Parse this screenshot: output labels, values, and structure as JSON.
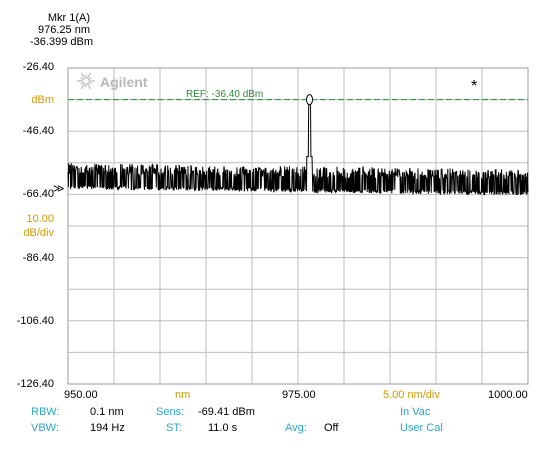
{
  "marker": {
    "name": "Mkr 1(A)",
    "wavelength": "976.25 nm",
    "power": "-36.399 dBm"
  },
  "logo": {
    "brand": "Agilent"
  },
  "ref_label": "REF: -36.40 dBm",
  "star_glyph": "*",
  "arrow_glyph": "≫",
  "ylabels": [
    "-26.40",
    "dBm",
    "-46.40",
    "-66.40",
    "10.00",
    "dB/div",
    "-86.40",
    "-106.40",
    "-126.40"
  ],
  "xlabels": [
    "950.00",
    "nm",
    "975.00",
    "5.00 nm/div",
    "1000.00"
  ],
  "status": {
    "rbw_label": "RBW:",
    "rbw_value": "0.1 nm",
    "vbw_label": "VBW:",
    "vbw_value": "194  Hz",
    "sens_label": "Sens:",
    "sens_value": "-69.41 dBm",
    "st_label": "ST:",
    "st_value": "11.0 s",
    "avg_label": "Avg:",
    "avg_value": "Off",
    "mode1": "In Vac",
    "mode2": "User Cal"
  },
  "colors": {
    "ref_line": "#2e8b3a",
    "gold": "#d19a00",
    "cyan": "#2aa6c8",
    "grid": "#bdbdbd",
    "trace": "#000000"
  },
  "chart_data": {
    "type": "line",
    "xlim": [
      950.0,
      1000.0
    ],
    "ylim": [
      -126.4,
      -26.4
    ],
    "xunit": "nm",
    "yunit": "dBm",
    "ref_level": -36.4,
    "noise_floor": [
      {
        "x": 950.0,
        "y": -63.5
      },
      {
        "x": 975.0,
        "y": -64.5
      },
      {
        "x": 1000.0,
        "y": -65.5
      }
    ],
    "peak": {
      "x": 976.25,
      "y": -36.399
    }
  }
}
